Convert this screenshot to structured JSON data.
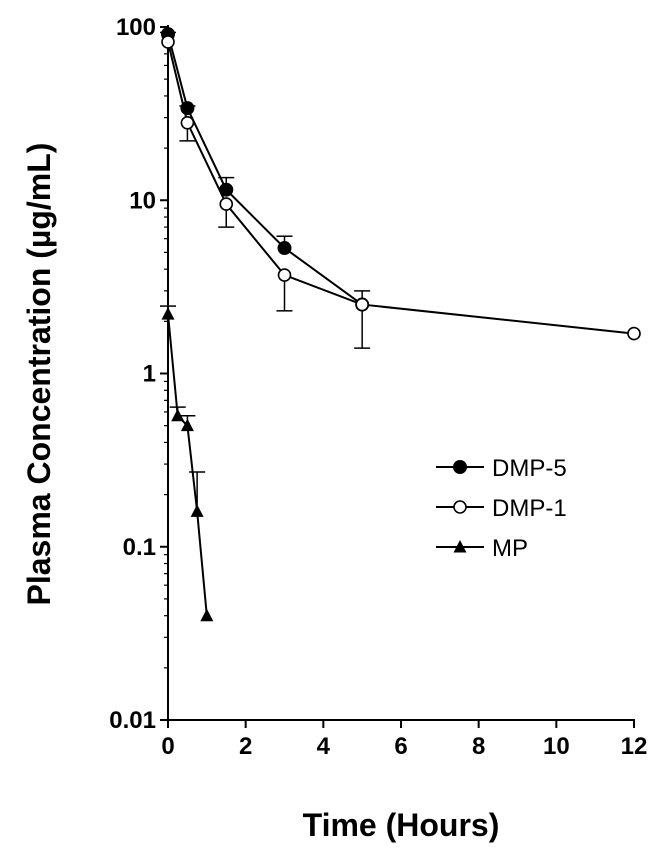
{
  "chart_data": {
    "type": "line",
    "xlabel": "Time (Hours)",
    "ylabel": "Plasma Concentration (µg/mL)",
    "xlim": [
      0,
      12
    ],
    "ylim": [
      0.01,
      100
    ],
    "y_scale": "log",
    "x_ticks": [
      0,
      2,
      4,
      6,
      8,
      10,
      12
    ],
    "x_tick_labels": [
      "0",
      "2",
      "4",
      "6",
      "8",
      "10",
      "12"
    ],
    "y_ticks": [
      0.01,
      0.1,
      1,
      10,
      100
    ],
    "y_tick_labels": [
      "0.01",
      "0.1",
      "1",
      "10",
      "100"
    ],
    "grid": false,
    "legend_position": "center-right",
    "series": [
      {
        "name": "DMP-5",
        "marker": "filled-circle",
        "color": "#000000",
        "x": [
          0,
          0.5,
          1.5,
          3,
          5
        ],
        "y": [
          91,
          34,
          11.5,
          5.3,
          2.5
        ],
        "error_upper": [
          93,
          35,
          13.5,
          6.2,
          3.0
        ]
      },
      {
        "name": "DMP-1",
        "marker": "open-circle",
        "color": "#000000",
        "x": [
          0,
          0.5,
          1.5,
          3,
          5,
          12
        ],
        "y": [
          82,
          28,
          9.5,
          3.7,
          2.5,
          1.7
        ],
        "error_lower": [
          82,
          22,
          7.0,
          2.3,
          1.4,
          1.7
        ]
      },
      {
        "name": "MP",
        "marker": "filled-triangle",
        "color": "#000000",
        "x": [
          0,
          0.25,
          0.5,
          0.75,
          1
        ],
        "y": [
          2.2,
          0.57,
          0.5,
          0.16,
          0.04
        ],
        "error_upper": [
          2.45,
          0.64,
          0.57,
          0.27,
          0.04
        ]
      }
    ]
  }
}
